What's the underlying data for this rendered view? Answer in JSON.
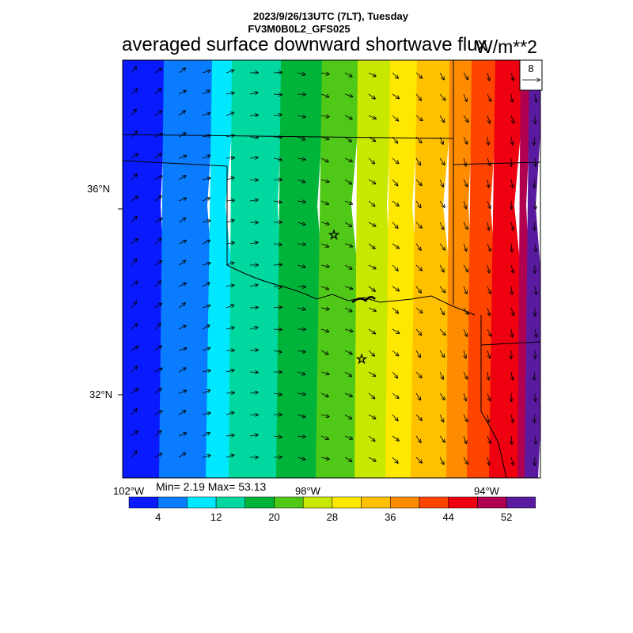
{
  "header": {
    "datetime": "2023/9/26/13UTC (7LT), Tuesday",
    "model": "FV3M0B0L2_GFS025"
  },
  "title": "averaged surface downward shortwave flux",
  "units": "W/m**2",
  "lat_labels": [
    "36°N",
    "32°N"
  ],
  "lon_labels": [
    "102°W",
    "98°W",
    "94°W"
  ],
  "stats": {
    "text": "Min= 2.19 Max= 53.13",
    "min": 2.19,
    "max": 53.13
  },
  "vector_ref": {
    "value": "8"
  },
  "colorbar": {
    "colors": [
      "#0a1aff",
      "#0a7cff",
      "#00e8ff",
      "#00d8a0",
      "#00b43a",
      "#50c818",
      "#c8e800",
      "#ffe800",
      "#ffc000",
      "#ff8c00",
      "#ff4400",
      "#ee0010",
      "#b00050",
      "#5a1aa0"
    ],
    "tick_labels": [
      "4",
      "12",
      "20",
      "28",
      "36",
      "44",
      "52"
    ]
  },
  "field_colors": [
    "#0a1aff",
    "#0a7cff",
    "#00e8ff",
    "#00d8a0",
    "#00b43a",
    "#50c818",
    "#c8e800",
    "#ffe800",
    "#ffc000",
    "#ff8c00",
    "#ff4400",
    "#ee0010",
    "#b00050",
    "#5a1aa0"
  ],
  "stations": [
    "star-marker-1",
    "star-marker-2"
  ]
}
